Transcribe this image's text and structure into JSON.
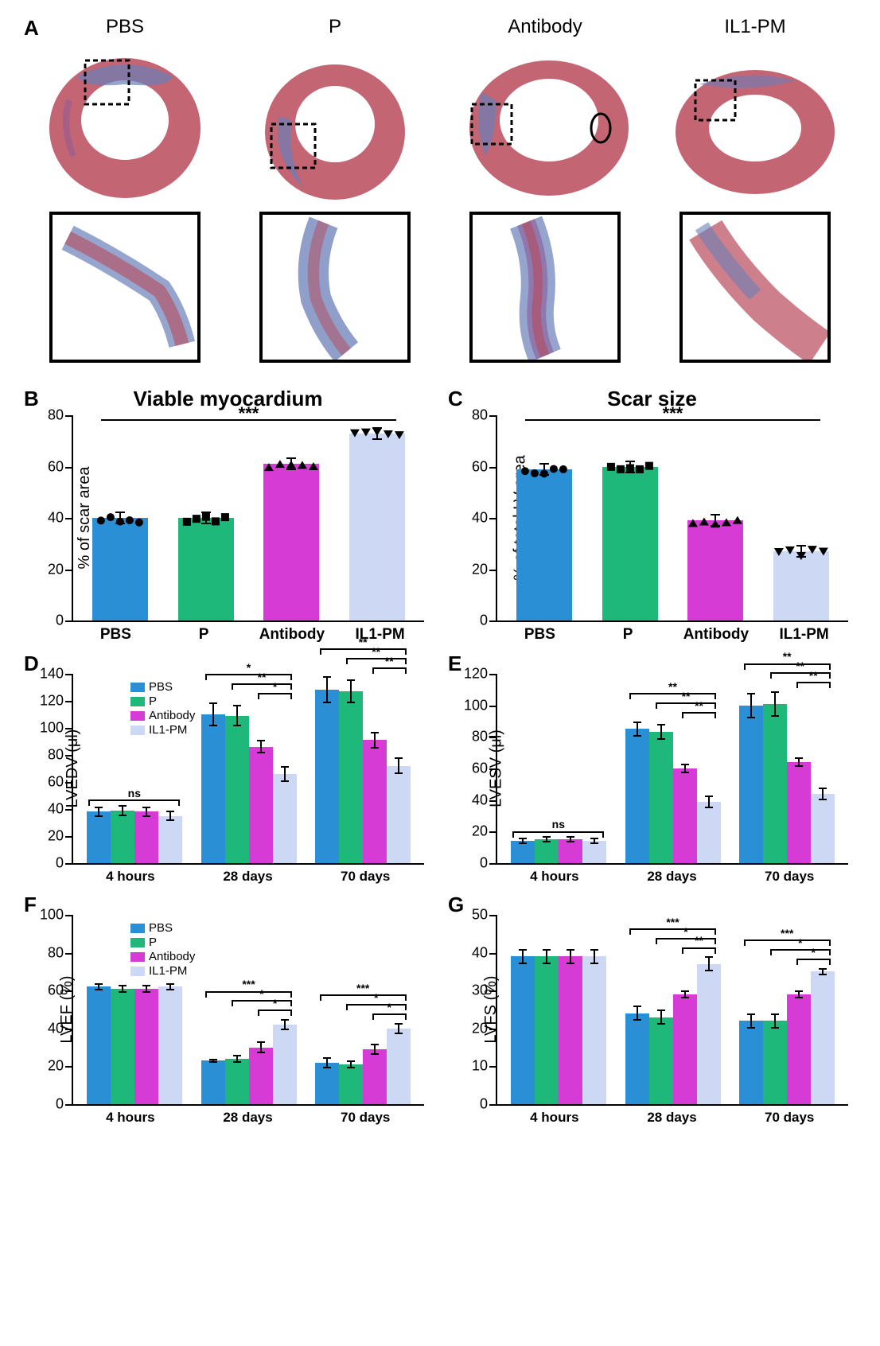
{
  "colors": {
    "pbs": "#2b8fd6",
    "p": "#1db87a",
    "antibody": "#d63bd6",
    "il1pm": "#cdd8f5",
    "black": "#000000",
    "tissue_red": "#b84a5a",
    "tissue_blue": "#6a7fb8",
    "tissue_purple": "#8a5a9a"
  },
  "panelA": {
    "label": "A",
    "columns": [
      "PBS",
      "P",
      "Antibody",
      "IL1-PM"
    ]
  },
  "panelB": {
    "label": "B",
    "title": "Viable myocardium",
    "ylabel": "% of scar area",
    "ylim": [
      0,
      80
    ],
    "ytick_step": 20,
    "categories": [
      "PBS",
      "P",
      "Antibody",
      "IL1-PM"
    ],
    "values": [
      40,
      40,
      61,
      73
    ],
    "markers": [
      "circle",
      "square",
      "triup",
      "tridown"
    ],
    "sig_label": "***"
  },
  "panelC": {
    "label": "C",
    "title": "Scar size",
    "ylabel": "% of total LV area",
    "ylim": [
      0,
      80
    ],
    "ytick_step": 20,
    "categories": [
      "PBS",
      "P",
      "Antibody",
      "IL1-PM"
    ],
    "values": [
      59,
      60,
      39,
      27
    ],
    "markers": [
      "circle",
      "square",
      "triup",
      "tridown"
    ],
    "sig_label": "***"
  },
  "legend_groups": [
    "PBS",
    "P",
    "Antibody",
    "IL1-PM"
  ],
  "panelD": {
    "label": "D",
    "ylabel": "LVEDV (μl)",
    "ylim": [
      0,
      140
    ],
    "ytick_step": 20,
    "xcats": [
      "4 hours",
      "28 days",
      "70 days"
    ],
    "data": {
      "4 hours": {
        "PBS": [
          38,
          4
        ],
        "P": [
          39,
          4
        ],
        "Antibody": [
          38,
          4
        ],
        "IL1-PM": [
          35,
          4
        ]
      },
      "28 days": {
        "PBS": [
          110,
          9
        ],
        "P": [
          109,
          8
        ],
        "Antibody": [
          86,
          5
        ],
        "IL1-PM": [
          66,
          6
        ]
      },
      "70 days": {
        "PBS": [
          128,
          10
        ],
        "P": [
          127,
          9
        ],
        "Antibody": [
          91,
          6
        ],
        "IL1-PM": [
          72,
          6
        ]
      }
    },
    "sig": {
      "4 hours": "ns",
      "28 days": [
        "*",
        "**",
        "*"
      ],
      "70 days": [
        "**",
        "**",
        "**"
      ]
    }
  },
  "panelE": {
    "label": "E",
    "ylabel": "LVESV (μl)",
    "ylim": [
      0,
      120
    ],
    "ytick_step": 20,
    "xcats": [
      "4 hours",
      "28 days",
      "70 days"
    ],
    "data": {
      "4 hours": {
        "PBS": [
          14,
          2
        ],
        "P": [
          15,
          2
        ],
        "Antibody": [
          15,
          2
        ],
        "IL1-PM": [
          14,
          2
        ]
      },
      "28 days": {
        "PBS": [
          85,
          5
        ],
        "P": [
          83,
          5
        ],
        "Antibody": [
          60,
          3
        ],
        "IL1-PM": [
          39,
          4
        ]
      },
      "70 days": {
        "PBS": [
          100,
          8
        ],
        "P": [
          101,
          8
        ],
        "Antibody": [
          64,
          3
        ],
        "IL1-PM": [
          44,
          4
        ]
      }
    },
    "sig": {
      "4 hours": "ns",
      "28 days": [
        "**",
        "**",
        "**"
      ],
      "70 days": [
        "**",
        "**",
        "**"
      ]
    }
  },
  "panelF": {
    "label": "F",
    "ylabel": "LVEF (%)",
    "ylim": [
      0,
      100
    ],
    "ytick_step": 20,
    "xcats": [
      "4 hours",
      "28 days",
      "70 days"
    ],
    "data": {
      "4 hours": {
        "PBS": [
          62,
          2
        ],
        "P": [
          61,
          2
        ],
        "Antibody": [
          61,
          2
        ],
        "IL1-PM": [
          62,
          2
        ]
      },
      "28 days": {
        "PBS": [
          23,
          1
        ],
        "P": [
          24,
          2
        ],
        "Antibody": [
          30,
          3
        ],
        "IL1-PM": [
          42,
          3
        ]
      },
      "70 days": {
        "PBS": [
          22,
          3
        ],
        "P": [
          21,
          2
        ],
        "Antibody": [
          29,
          3
        ],
        "IL1-PM": [
          40,
          3
        ]
      }
    },
    "sig": {
      "28 days": [
        "***",
        "*",
        "*"
      ],
      "70 days": [
        "***",
        "*",
        "*"
      ]
    }
  },
  "panelG": {
    "label": "G",
    "ylabel": "LVFS (%)",
    "ylim": [
      0,
      50
    ],
    "ytick_step": 10,
    "xcats": [
      "4 hours",
      "28 days",
      "70 days"
    ],
    "data": {
      "4 hours": {
        "PBS": [
          39,
          2
        ],
        "P": [
          39,
          2
        ],
        "Antibody": [
          39,
          2
        ],
        "IL1-PM": [
          39,
          2
        ]
      },
      "28 days": {
        "PBS": [
          24,
          2
        ],
        "P": [
          23,
          2
        ],
        "Antibody": [
          29,
          1
        ],
        "IL1-PM": [
          37,
          2
        ]
      },
      "70 days": {
        "PBS": [
          22,
          2
        ],
        "P": [
          22,
          2
        ],
        "Antibody": [
          29,
          1
        ],
        "IL1-PM": [
          35,
          1
        ]
      }
    },
    "sig": {
      "28 days": [
        "***",
        "*",
        "**"
      ],
      "70 days": [
        "***",
        "*",
        "*"
      ]
    }
  }
}
